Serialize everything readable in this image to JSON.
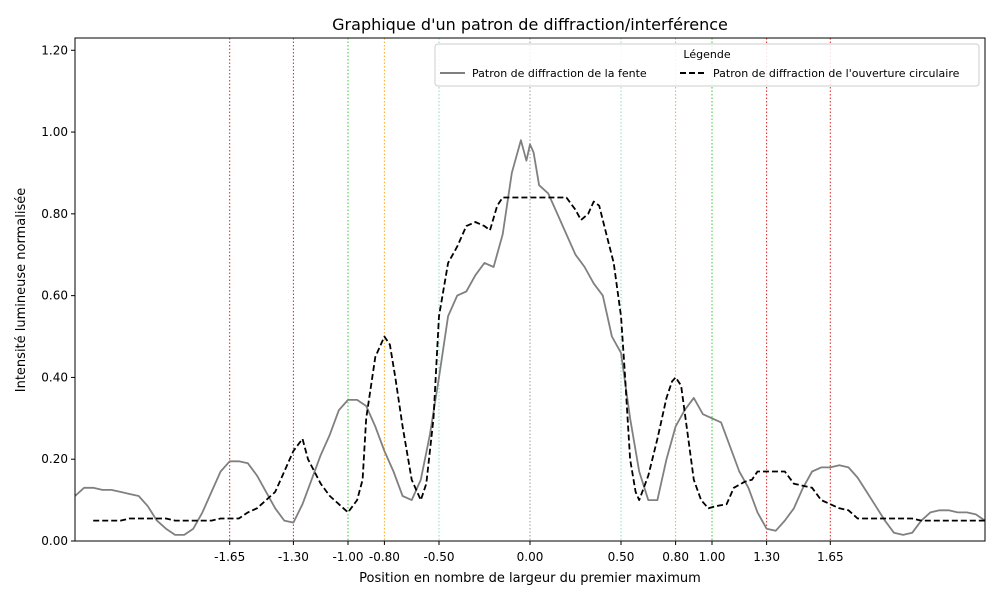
{
  "chart_data": {
    "type": "line",
    "title": "Graphique d'un patron de diffraction/interférence",
    "xlabel": "Position en nombre de largeur du premier maximum",
    "ylabel": "Intensité lumineuse normalisée",
    "xlim": [
      -2.5,
      2.5
    ],
    "ylim": [
      0.0,
      1.23
    ],
    "xticks": [
      -1.65,
      -1.3,
      -1.0,
      -0.8,
      -0.5,
      0.0,
      0.5,
      0.8,
      1.0,
      1.3,
      1.65
    ],
    "xtick_labels": [
      "-1.65",
      "-1.30",
      "-1.00",
      "-0.80",
      "-0.50",
      "0.00",
      "0.50",
      "0.80",
      "1.00",
      "1.30",
      "1.65"
    ],
    "yticks": [
      0.0,
      0.2,
      0.4,
      0.6,
      0.8,
      1.0,
      1.2
    ],
    "ytick_labels": [
      "0.00",
      "0.20",
      "0.40",
      "0.60",
      "0.80",
      "1.00",
      "1.20"
    ],
    "grid": false,
    "legend": {
      "title": "Légende",
      "placement": "top-right",
      "ncol": 2
    },
    "vlines": [
      {
        "x": -1.65,
        "color": "#dd2222"
      },
      {
        "x": -1.3,
        "color": "#dd2222"
      },
      {
        "x": -1.0,
        "color": "#33cc33"
      },
      {
        "x": -0.8,
        "color": "#ffaa22"
      },
      {
        "x": -0.5,
        "color": "#88ddcc"
      },
      {
        "x": 0.0,
        "color": "#999999"
      },
      {
        "x": 0.5,
        "color": "#88ddcc"
      },
      {
        "x": 0.8,
        "color": "#ffaa22"
      },
      {
        "x": 1.0,
        "color": "#33cc33"
      },
      {
        "x": 1.3,
        "color": "#dd2222"
      },
      {
        "x": 1.65,
        "color": "#dd2222"
      }
    ],
    "series": [
      {
        "name": "Patron de diffraction de la fente",
        "color": "#808080",
        "style": "solid",
        "points": [
          [
            -2.5,
            0.11
          ],
          [
            -2.45,
            0.13
          ],
          [
            -2.4,
            0.13
          ],
          [
            -2.35,
            0.125
          ],
          [
            -2.3,
            0.125
          ],
          [
            -2.25,
            0.12
          ],
          [
            -2.2,
            0.115
          ],
          [
            -2.15,
            0.11
          ],
          [
            -2.1,
            0.085
          ],
          [
            -2.05,
            0.05
          ],
          [
            -2.0,
            0.03
          ],
          [
            -1.95,
            0.015
          ],
          [
            -1.9,
            0.015
          ],
          [
            -1.85,
            0.03
          ],
          [
            -1.8,
            0.07
          ],
          [
            -1.75,
            0.12
          ],
          [
            -1.7,
            0.17
          ],
          [
            -1.65,
            0.195
          ],
          [
            -1.6,
            0.195
          ],
          [
            -1.55,
            0.19
          ],
          [
            -1.5,
            0.16
          ],
          [
            -1.45,
            0.12
          ],
          [
            -1.4,
            0.08
          ],
          [
            -1.35,
            0.05
          ],
          [
            -1.3,
            0.045
          ],
          [
            -1.25,
            0.09
          ],
          [
            -1.2,
            0.15
          ],
          [
            -1.15,
            0.21
          ],
          [
            -1.1,
            0.26
          ],
          [
            -1.05,
            0.32
          ],
          [
            -1.0,
            0.345
          ],
          [
            -0.95,
            0.345
          ],
          [
            -0.9,
            0.33
          ],
          [
            -0.85,
            0.28
          ],
          [
            -0.8,
            0.22
          ],
          [
            -0.75,
            0.17
          ],
          [
            -0.7,
            0.11
          ],
          [
            -0.65,
            0.1
          ],
          [
            -0.6,
            0.15
          ],
          [
            -0.55,
            0.26
          ],
          [
            -0.5,
            0.4
          ],
          [
            -0.45,
            0.55
          ],
          [
            -0.4,
            0.6
          ],
          [
            -0.35,
            0.61
          ],
          [
            -0.3,
            0.65
          ],
          [
            -0.25,
            0.68
          ],
          [
            -0.2,
            0.67
          ],
          [
            -0.15,
            0.75
          ],
          [
            -0.1,
            0.9
          ],
          [
            -0.05,
            0.98
          ],
          [
            -0.02,
            0.93
          ],
          [
            0.0,
            0.97
          ],
          [
            0.02,
            0.95
          ],
          [
            0.05,
            0.87
          ],
          [
            0.1,
            0.85
          ],
          [
            0.15,
            0.8
          ],
          [
            0.2,
            0.75
          ],
          [
            0.25,
            0.7
          ],
          [
            0.3,
            0.67
          ],
          [
            0.35,
            0.63
          ],
          [
            0.4,
            0.6
          ],
          [
            0.45,
            0.5
          ],
          [
            0.5,
            0.46
          ],
          [
            0.55,
            0.3
          ],
          [
            0.6,
            0.17
          ],
          [
            0.65,
            0.1
          ],
          [
            0.7,
            0.1
          ],
          [
            0.75,
            0.2
          ],
          [
            0.8,
            0.28
          ],
          [
            0.85,
            0.32
          ],
          [
            0.9,
            0.35
          ],
          [
            0.95,
            0.31
          ],
          [
            1.0,
            0.3
          ],
          [
            1.05,
            0.29
          ],
          [
            1.1,
            0.23
          ],
          [
            1.15,
            0.17
          ],
          [
            1.2,
            0.13
          ],
          [
            1.25,
            0.07
          ],
          [
            1.3,
            0.03
          ],
          [
            1.35,
            0.025
          ],
          [
            1.4,
            0.05
          ],
          [
            1.45,
            0.08
          ],
          [
            1.5,
            0.13
          ],
          [
            1.55,
            0.17
          ],
          [
            1.6,
            0.18
          ],
          [
            1.65,
            0.18
          ],
          [
            1.7,
            0.185
          ],
          [
            1.75,
            0.18
          ],
          [
            1.8,
            0.155
          ],
          [
            1.85,
            0.12
          ],
          [
            1.9,
            0.085
          ],
          [
            1.95,
            0.05
          ],
          [
            2.0,
            0.02
          ],
          [
            2.05,
            0.015
          ],
          [
            2.1,
            0.02
          ],
          [
            2.15,
            0.05
          ],
          [
            2.2,
            0.07
          ],
          [
            2.25,
            0.075
          ],
          [
            2.3,
            0.075
          ],
          [
            2.35,
            0.07
          ],
          [
            2.4,
            0.07
          ],
          [
            2.45,
            0.065
          ],
          [
            2.5,
            0.05
          ]
        ]
      },
      {
        "name": "Patron de diffraction de l'ouverture circulaire",
        "color": "#000000",
        "style": "dashed",
        "points": [
          [
            -2.4,
            0.05
          ],
          [
            -2.25,
            0.05
          ],
          [
            -2.2,
            0.055
          ],
          [
            -2.0,
            0.055
          ],
          [
            -1.95,
            0.05
          ],
          [
            -1.75,
            0.05
          ],
          [
            -1.7,
            0.055
          ],
          [
            -1.65,
            0.055
          ],
          [
            -1.6,
            0.055
          ],
          [
            -1.55,
            0.07
          ],
          [
            -1.5,
            0.08
          ],
          [
            -1.45,
            0.1
          ],
          [
            -1.4,
            0.12
          ],
          [
            -1.35,
            0.17
          ],
          [
            -1.3,
            0.22
          ],
          [
            -1.25,
            0.25
          ],
          [
            -1.22,
            0.2
          ],
          [
            -1.15,
            0.14
          ],
          [
            -1.1,
            0.11
          ],
          [
            -1.05,
            0.09
          ],
          [
            -1.0,
            0.07
          ],
          [
            -0.95,
            0.1
          ],
          [
            -0.92,
            0.15
          ],
          [
            -0.9,
            0.3
          ],
          [
            -0.85,
            0.45
          ],
          [
            -0.8,
            0.5
          ],
          [
            -0.77,
            0.48
          ],
          [
            -0.74,
            0.4
          ],
          [
            -0.7,
            0.28
          ],
          [
            -0.65,
            0.15
          ],
          [
            -0.6,
            0.1
          ],
          [
            -0.57,
            0.14
          ],
          [
            -0.53,
            0.3
          ],
          [
            -0.5,
            0.55
          ],
          [
            -0.45,
            0.68
          ],
          [
            -0.4,
            0.72
          ],
          [
            -0.35,
            0.77
          ],
          [
            -0.3,
            0.78
          ],
          [
            -0.25,
            0.77
          ],
          [
            -0.22,
            0.76
          ],
          [
            -0.18,
            0.82
          ],
          [
            -0.15,
            0.84
          ],
          [
            0.2,
            0.84
          ],
          [
            0.25,
            0.81
          ],
          [
            0.28,
            0.785
          ],
          [
            0.32,
            0.8
          ],
          [
            0.35,
            0.83
          ],
          [
            0.38,
            0.82
          ],
          [
            0.42,
            0.75
          ],
          [
            0.46,
            0.68
          ],
          [
            0.5,
            0.55
          ],
          [
            0.52,
            0.42
          ],
          [
            0.55,
            0.2
          ],
          [
            0.58,
            0.12
          ],
          [
            0.6,
            0.1
          ],
          [
            0.65,
            0.16
          ],
          [
            0.7,
            0.25
          ],
          [
            0.75,
            0.35
          ],
          [
            0.78,
            0.39
          ],
          [
            0.8,
            0.4
          ],
          [
            0.83,
            0.38
          ],
          [
            0.87,
            0.25
          ],
          [
            0.9,
            0.15
          ],
          [
            0.94,
            0.1
          ],
          [
            0.98,
            0.08
          ],
          [
            1.02,
            0.085
          ],
          [
            1.08,
            0.09
          ],
          [
            1.12,
            0.13
          ],
          [
            1.18,
            0.145
          ],
          [
            1.22,
            0.15
          ],
          [
            1.25,
            0.17
          ],
          [
            1.4,
            0.17
          ],
          [
            1.45,
            0.14
          ],
          [
            1.55,
            0.13
          ],
          [
            1.6,
            0.1
          ],
          [
            1.7,
            0.08
          ],
          [
            1.75,
            0.075
          ],
          [
            1.8,
            0.055
          ],
          [
            2.0,
            0.055
          ],
          [
            2.1,
            0.055
          ],
          [
            2.15,
            0.05
          ],
          [
            2.5,
            0.05
          ]
        ]
      }
    ]
  }
}
